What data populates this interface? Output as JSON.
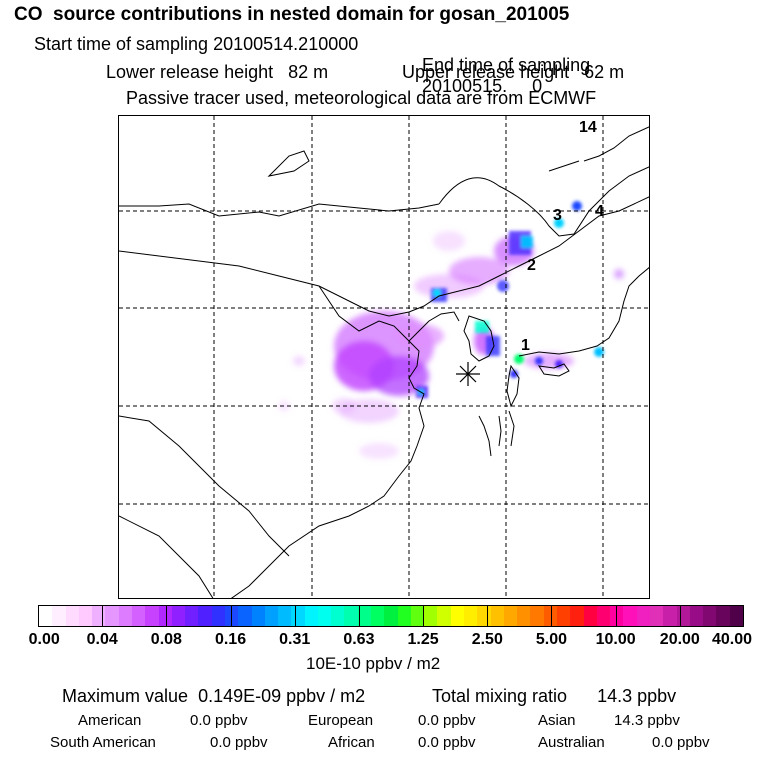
{
  "header": {
    "title": "CO  source contributions in nested domain for gosan_201005",
    "start_label": "Start time of sampling",
    "start_value": "20100514.210000",
    "end_label": "End time of sampling",
    "end_value": "20100515.     0",
    "lower_label": "Lower release height",
    "lower_value": "82 m",
    "upper_label": "Upper release height",
    "upper_value": "62 m",
    "tracer_note": "Passive tracer used, meteorological data are from ECMWF"
  },
  "map": {
    "labels": [
      "14",
      "3",
      "4",
      "2",
      "1"
    ],
    "receptor": "gosan"
  },
  "colorbar": {
    "ticks": [
      "0.00",
      "0.04",
      "0.08",
      "0.16",
      "0.31",
      "0.63",
      "1.25",
      "2.50",
      "5.00",
      "10.00",
      "20.00",
      "40.00"
    ],
    "unit": "10E-10 ppbv / m2",
    "colors": [
      "#ffffff",
      "#ffeeff",
      "#ffdcff",
      "#ffcaff",
      "#eeb0ff",
      "#e696ff",
      "#de7cff",
      "#d460ff",
      "#c642ff",
      "#b028ff",
      "#9020ff",
      "#7020ff",
      "#5020ff",
      "#3030ff",
      "#1c48ff",
      "#0a64ff",
      "#0082ff",
      "#00a0ff",
      "#00bcff",
      "#00d8ff",
      "#00f4ff",
      "#00ffee",
      "#00ffd0",
      "#00ffae",
      "#00ff8a",
      "#00ff60",
      "#00f040",
      "#20ff20",
      "#60ff10",
      "#a0ff00",
      "#d0ff00",
      "#ffff00",
      "#ffee00",
      "#ffd800",
      "#ffc000",
      "#ffa800",
      "#ff9000",
      "#ff7800",
      "#ff5c00",
      "#ff4000",
      "#ff2010",
      "#ff0040",
      "#ff0070",
      "#ff00a0",
      "#ff10b8",
      "#f020c0",
      "#e030b8",
      "#c820a8",
      "#b01898",
      "#980c88",
      "#800870",
      "#68045c",
      "#500048"
    ]
  },
  "summary": {
    "max_label": "Maximum value",
    "max_value": "0.149E-09 ppbv / m2",
    "total_label": "Total mixing ratio",
    "total_value": "14.3 ppbv",
    "sources": [
      {
        "name": "American",
        "value": "0.0 ppbv"
      },
      {
        "name": "European",
        "value": "0.0 ppbv"
      },
      {
        "name": "Asian",
        "value": "14.3 ppbv"
      },
      {
        "name": "South American",
        "value": "0.0 ppbv"
      },
      {
        "name": "African",
        "value": "0.0 ppbv"
      },
      {
        "name": "Australian",
        "value": "0.0 ppbv"
      }
    ]
  }
}
